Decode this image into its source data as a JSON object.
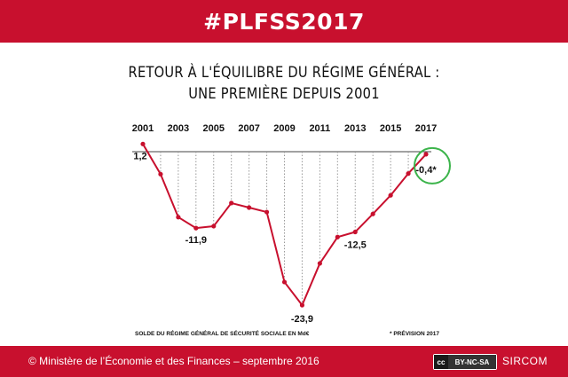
{
  "header": {
    "hashtag": "#PLFSS2017"
  },
  "footer": {
    "copyright": "© Ministère de l’Économie et des Finances – septembre 2016",
    "license_badge": "BY-NC-SA",
    "license_cc": "cc",
    "brand": "SIRCOM"
  },
  "colors": {
    "brand_red": "#c8102e",
    "series_line": "#c8102e",
    "highlight_circle": "#3cb44b",
    "dotted_guides": "#999999",
    "zero_line": "#444444"
  },
  "chart_data": {
    "type": "line",
    "title_line1": "RETOUR À L'ÉQUILIBRE DU RÉGIME GÉNÉRAL :",
    "title_line2": "UNE PREMIÈRE DEPUIS 2001",
    "x_tick_labels": [
      "2001",
      "2003",
      "2005",
      "2007",
      "2009",
      "2011",
      "2013",
      "2015",
      "2017"
    ],
    "x": [
      2001,
      2002,
      2003,
      2004,
      2005,
      2006,
      2007,
      2008,
      2009,
      2010,
      2011,
      2012,
      2013,
      2014,
      2015,
      2016,
      2017
    ],
    "values": [
      1.2,
      -3.5,
      -10.2,
      -11.9,
      -11.6,
      -8.0,
      -8.7,
      -9.4,
      -20.3,
      -23.9,
      -17.4,
      -13.3,
      -12.5,
      -9.7,
      -6.8,
      -3.4,
      -0.4
    ],
    "point_labels": [
      {
        "year": 2001,
        "text": "1,2"
      },
      {
        "year": 2004,
        "text": "-11,9"
      },
      {
        "year": 2010,
        "text": "-23,9"
      },
      {
        "year": 2013,
        "text": "-12,5"
      },
      {
        "year": 2017,
        "text": "-0,4*"
      }
    ],
    "highlight_year": 2017,
    "source_note": "SOLDE DU RÉGIME GÉNÉRAL DE SÉCURITÉ SOCIALE EN Md€",
    "footnote": "* PRÉVISION 2017",
    "ylim": [
      -25,
      2
    ],
    "zero_line": true,
    "guides": "dotted vertical lines from zero line to each data point"
  }
}
